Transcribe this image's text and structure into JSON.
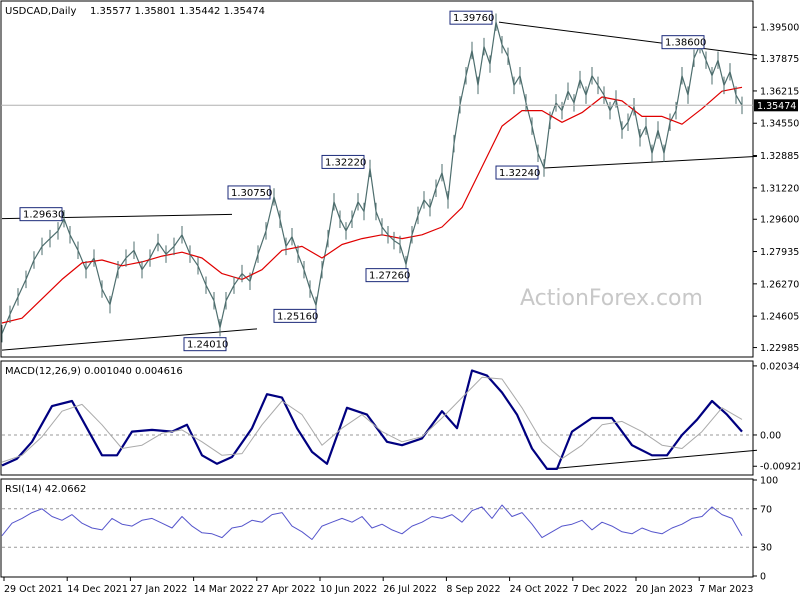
{
  "header": {
    "symbol": "USDCAD,Daily",
    "ohlc": "1.35577 1.35801 1.35442 1.35474",
    "macd": "MACD(12,26,9) 0.001040 0.004616",
    "rsi": "RSI(14) 42.0662"
  },
  "watermark": "ActionForex.com",
  "current_price_label": "1.35474",
  "chart_data": [
    {
      "type": "line",
      "panel": "price",
      "title": "",
      "ylim": [
        1.2255,
        1.408
      ],
      "y_ticks": [
        "1.39500",
        "1.37875",
        "1.36215",
        "1.34550",
        "1.32885",
        "1.31220",
        "1.29600",
        "1.27935",
        "1.26270",
        "1.24605",
        "1.22985"
      ],
      "x_ticks": [
        "29 Oct 2021",
        "14 Dec 2021",
        "27 Jan 2022",
        "14 Mar 2022",
        "27 Apr 2022",
        "10 Jun 2022",
        "26 Jul 2022",
        "8 Sep 2022",
        "24 Oct 2022",
        "7 Dec 2022",
        "20 Jan 2023",
        "7 Mar 2023"
      ],
      "series": [
        {
          "name": "",
          "color": "#4e6e6e",
          "x": [
            0,
            8,
            16,
            24,
            32,
            40,
            48,
            56,
            62,
            68,
            76,
            84,
            92,
            100,
            108,
            116,
            124,
            132,
            140,
            148,
            156,
            164,
            172,
            180,
            188,
            196,
            204,
            212,
            218,
            224,
            232,
            240,
            248,
            256,
            264,
            272,
            278,
            284,
            290,
            296,
            302,
            308,
            314,
            320,
            326,
            332,
            338,
            344,
            350,
            356,
            362,
            368,
            374,
            380,
            386,
            392,
            398,
            404,
            410,
            416,
            422,
            428,
            434,
            440,
            446,
            452,
            458,
            464,
            470,
            476,
            482,
            488,
            494,
            500,
            506,
            512,
            518,
            524,
            530,
            536,
            542,
            548,
            554,
            560,
            566,
            572,
            578,
            584,
            590,
            596,
            602,
            608,
            614,
            620,
            626,
            632,
            638,
            644,
            650,
            656,
            662,
            668,
            674,
            680,
            686,
            692,
            698,
            704,
            710,
            716,
            722,
            728,
            734,
            740
          ],
          "values": [
            1.237,
            1.247,
            1.256,
            1.265,
            1.275,
            1.282,
            1.286,
            1.29,
            1.2963,
            1.288,
            1.28,
            1.27,
            1.276,
            1.26,
            1.252,
            1.27,
            1.276,
            1.28,
            1.27,
            1.276,
            1.284,
            1.278,
            1.282,
            1.288,
            1.278,
            1.272,
            1.262,
            1.254,
            1.2401,
            1.254,
            1.262,
            1.268,
            1.264,
            1.278,
            1.29,
            1.3075,
            1.296,
            1.282,
            1.287,
            1.278,
            1.27,
            1.26,
            1.2516,
            1.27,
            1.286,
            1.305,
            1.296,
            1.29,
            1.296,
            1.305,
            1.3,
            1.3222,
            1.3,
            1.292,
            1.288,
            1.285,
            1.283,
            1.2726,
            1.288,
            1.298,
            1.306,
            1.302,
            1.312,
            1.32,
            1.306,
            1.335,
            1.355,
            1.37,
            1.383,
            1.365,
            1.385,
            1.376,
            1.3976,
            1.386,
            1.38,
            1.365,
            1.37,
            1.356,
            1.344,
            1.33,
            1.3224,
            1.347,
            1.356,
            1.352,
            1.362,
            1.356,
            1.368,
            1.36,
            1.37,
            1.365,
            1.36,
            1.352,
            1.358,
            1.342,
            1.346,
            1.354,
            1.338,
            1.344,
            1.33,
            1.342,
            1.33,
            1.346,
            1.352,
            1.37,
            1.36,
            1.379,
            1.386,
            1.378,
            1.37,
            1.378,
            1.365,
            1.372,
            1.36,
            1.3547
          ]
        },
        {
          "name": "",
          "color": "#e00000",
          "x": [
            0,
            20,
            40,
            60,
            80,
            100,
            120,
            140,
            160,
            180,
            200,
            220,
            240,
            260,
            280,
            300,
            320,
            340,
            360,
            380,
            400,
            420,
            440,
            460,
            480,
            500,
            520,
            540,
            560,
            580,
            600,
            620,
            640,
            660,
            680,
            700,
            720,
            740
          ],
          "values": [
            1.2425,
            1.245,
            1.255,
            1.265,
            1.2735,
            1.275,
            1.272,
            1.274,
            1.277,
            1.279,
            1.276,
            1.268,
            1.265,
            1.27,
            1.28,
            1.282,
            1.276,
            1.283,
            1.286,
            1.288,
            1.286,
            1.288,
            1.292,
            1.302,
            1.323,
            1.344,
            1.352,
            1.352,
            1.346,
            1.351,
            1.359,
            1.357,
            1.349,
            1.349,
            1.345,
            1.353,
            1.362,
            1.364
          ]
        }
      ],
      "annotations": [
        {
          "text": "1.29630",
          "x": 62,
          "y": 1.2963
        },
        {
          "text": "1.24010",
          "x": 218,
          "y": 1.2401
        },
        {
          "text": "1.30750",
          "x": 272,
          "y": 1.3075
        },
        {
          "text": "1.25160",
          "x": 314,
          "y": 1.2516
        },
        {
          "text": "1.32220",
          "x": 368,
          "y": 1.3222
        },
        {
          "text": "1.27260",
          "x": 404,
          "y": 1.2726
        },
        {
          "text": "1.39760",
          "x": 494,
          "y": 1.3976
        },
        {
          "text": "1.32240",
          "x": 542,
          "y": 1.3224
        },
        {
          "text": "1.38600",
          "x": 704,
          "y": 1.386
        }
      ],
      "trendlines": [
        {
          "x": [
            0,
            230
          ],
          "y": [
            1.2963,
            1.2985
          ]
        },
        {
          "x": [
            0,
            255
          ],
          "y": [
            1.2285,
            1.2395
          ]
        },
        {
          "x": [
            497,
            755
          ],
          "y": [
            1.3976,
            1.3805
          ]
        },
        {
          "x": [
            542,
            755
          ],
          "y": [
            1.3224,
            1.3284
          ]
        }
      ]
    },
    {
      "type": "line",
      "panel": "macd",
      "title": "MACD(12,26,9) 0.001040 0.004616",
      "ylim": [
        -0.0115,
        0.0215
      ],
      "y_ticks": [
        "0.020349",
        "0.00",
        "-0.009215"
      ],
      "series": [
        {
          "name": "",
          "color": "#000080",
          "x": [
            0,
            15,
            30,
            50,
            70,
            85,
            100,
            115,
            130,
            150,
            170,
            185,
            200,
            215,
            230,
            250,
            265,
            280,
            295,
            310,
            325,
            345,
            365,
            385,
            400,
            420,
            440,
            455,
            470,
            485,
            500,
            515,
            530,
            545,
            555,
            570,
            590,
            610,
            630,
            650,
            665,
            680,
            695,
            710,
            725,
            740
          ],
          "values": [
            -0.009,
            -0.007,
            -0.002,
            0.0085,
            0.01,
            0.002,
            -0.006,
            -0.006,
            0.001,
            0.0015,
            0.001,
            0.003,
            -0.006,
            -0.0085,
            -0.0065,
            0.002,
            0.012,
            0.011,
            0.002,
            -0.005,
            -0.0085,
            0.008,
            0.006,
            -0.002,
            -0.003,
            -0.001,
            0.007,
            0.002,
            0.019,
            0.0175,
            0.0125,
            0.006,
            -0.004,
            -0.01,
            -0.01,
            0.001,
            0.005,
            0.005,
            -0.003,
            -0.006,
            -0.006,
            0.0,
            0.0045,
            0.01,
            0.006,
            0.001
          ]
        },
        {
          "name": "",
          "color": "#aaaaaa",
          "x": [
            0,
            20,
            40,
            60,
            80,
            100,
            120,
            140,
            160,
            180,
            200,
            220,
            240,
            260,
            280,
            300,
            320,
            340,
            360,
            380,
            400,
            420,
            440,
            460,
            480,
            500,
            520,
            540,
            560,
            580,
            600,
            620,
            640,
            660,
            680,
            700,
            720,
            740
          ],
          "values": [
            -0.008,
            -0.006,
            -0.0005,
            0.007,
            0.009,
            0.003,
            -0.004,
            -0.003,
            0.0005,
            0.0015,
            -0.002,
            -0.006,
            -0.0055,
            0.003,
            0.01,
            0.006,
            -0.003,
            0.002,
            0.006,
            0.001,
            -0.002,
            -0.0005,
            0.005,
            0.011,
            0.017,
            0.0165,
            0.008,
            -0.002,
            -0.007,
            -0.003,
            0.003,
            0.004,
            0.001,
            -0.003,
            -0.004,
            0.001,
            0.008,
            0.0046
          ]
        }
      ],
      "trendlines": [
        {
          "x": [
            548,
            755
          ],
          "y": [
            -0.01,
            -0.0045
          ]
        }
      ]
    },
    {
      "type": "line",
      "panel": "rsi",
      "title": "RSI(14) 42.0662",
      "ylim": [
        0,
        100
      ],
      "y_ticks": [
        "100",
        "70",
        "30",
        "0"
      ],
      "levels": [
        70,
        30
      ],
      "series": [
        {
          "name": "",
          "color": "#5555cc",
          "x": [
            0,
            10,
            20,
            30,
            40,
            50,
            60,
            70,
            80,
            90,
            100,
            110,
            120,
            130,
            140,
            150,
            160,
            170,
            180,
            190,
            200,
            210,
            220,
            230,
            240,
            250,
            260,
            270,
            280,
            290,
            300,
            310,
            320,
            330,
            340,
            350,
            360,
            370,
            380,
            390,
            400,
            410,
            420,
            430,
            440,
            450,
            460,
            470,
            480,
            490,
            500,
            510,
            520,
            530,
            540,
            550,
            560,
            570,
            580,
            590,
            600,
            610,
            620,
            630,
            640,
            650,
            660,
            670,
            680,
            690,
            700,
            710,
            720,
            730,
            740
          ],
          "values": [
            42,
            55,
            60,
            66,
            70,
            62,
            58,
            64,
            55,
            50,
            48,
            60,
            54,
            52,
            58,
            60,
            55,
            50,
            62,
            52,
            45,
            44,
            40,
            50,
            52,
            58,
            56,
            64,
            66,
            52,
            46,
            38,
            52,
            56,
            60,
            56,
            62,
            50,
            54,
            48,
            44,
            52,
            56,
            62,
            60,
            64,
            56,
            68,
            72,
            60,
            74,
            62,
            66,
            54,
            40,
            46,
            52,
            54,
            58,
            48,
            56,
            52,
            46,
            44,
            50,
            46,
            44,
            50,
            54,
            60,
            62,
            72,
            64,
            60,
            42
          ]
        }
      ]
    }
  ]
}
